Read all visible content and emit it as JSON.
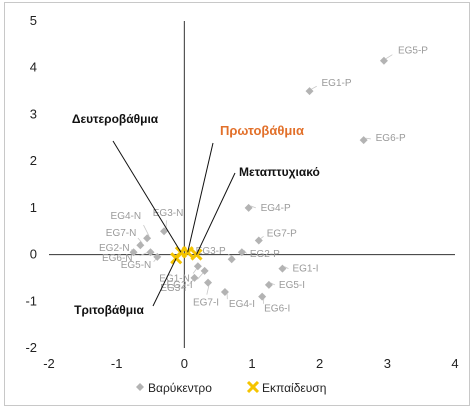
{
  "chart_data": {
    "type": "scatter",
    "xlim": [
      -2,
      4
    ],
    "ylim": [
      -2,
      5
    ],
    "x_ticks": [
      "-2",
      "-1",
      "0",
      "1",
      "2",
      "3",
      "4"
    ],
    "y_ticks": [
      "5",
      "4",
      "3",
      "2",
      "1",
      "0",
      "-1",
      "-2"
    ],
    "grid": false,
    "legend_position": "bottom",
    "series": [
      {
        "name": "Βαρύκεντρο",
        "marker": "diamond",
        "color": "#b3b3b3",
        "points": [
          {
            "label": "EG5-P",
            "x": 2.95,
            "y": 4.15
          },
          {
            "label": "EG1-P",
            "x": 1.85,
            "y": 3.5
          },
          {
            "label": "EG6-P",
            "x": 2.65,
            "y": 2.45
          },
          {
            "label": "EG4-P",
            "x": 0.95,
            "y": 1.0
          },
          {
            "label": "EG7-P",
            "x": 1.1,
            "y": 0.3
          },
          {
            "label": "EG3-P",
            "x": 0.7,
            "y": -0.1
          },
          {
            "label": "EG2-P",
            "x": 0.85,
            "y": 0.05
          },
          {
            "label": "EG1-I",
            "x": 1.45,
            "y": -0.3
          },
          {
            "label": "EG5-I",
            "x": 1.25,
            "y": -0.65
          },
          {
            "label": "EG6-I",
            "x": 1.15,
            "y": -0.9
          },
          {
            "label": "EG4-I",
            "x": 0.6,
            "y": -0.8
          },
          {
            "label": "EG7-I",
            "x": 0.35,
            "y": -0.6
          },
          {
            "label": "EG3-I",
            "x": 0.15,
            "y": -0.5
          },
          {
            "label": "EG2-I",
            "x": 0.3,
            "y": -0.35
          },
          {
            "label": "EG1-N",
            "x": 0.2,
            "y": -0.25
          },
          {
            "label": "EG3-N",
            "x": -0.3,
            "y": 0.5
          },
          {
            "label": "EG4-N",
            "x": -0.55,
            "y": 0.35
          },
          {
            "label": "EG7-N",
            "x": -0.65,
            "y": 0.2
          },
          {
            "label": "EG2-N",
            "x": -0.75,
            "y": 0.05
          },
          {
            "label": "EG6-N",
            "x": -0.5,
            "y": 0.05
          },
          {
            "label": "EG5-N",
            "x": -0.4,
            "y": -0.05
          }
        ]
      },
      {
        "name": "Εκπαίδευση",
        "marker": "x",
        "color": "#f5c400",
        "points": [
          {
            "label": "Δευτεροβάθμια",
            "x": -0.05,
            "y": 0.05
          },
          {
            "label": "Πρωτοβάθμια",
            "x": 0.05,
            "y": 0.05
          },
          {
            "label": "Μεταπτυχιακό",
            "x": 0.18,
            "y": 0.0
          },
          {
            "label": "Τριτοβάθμια",
            "x": -0.12,
            "y": -0.08
          }
        ]
      }
    ],
    "annotations": [
      {
        "text": "Δευτεροβάθμια",
        "highlight": false
      },
      {
        "text": "Πρωτοβάθμια",
        "highlight": true,
        "color": "#e2702a"
      },
      {
        "text": "Μεταπτυχιακό",
        "highlight": false
      },
      {
        "text": "Τριτοβάθμια",
        "highlight": false
      }
    ]
  }
}
